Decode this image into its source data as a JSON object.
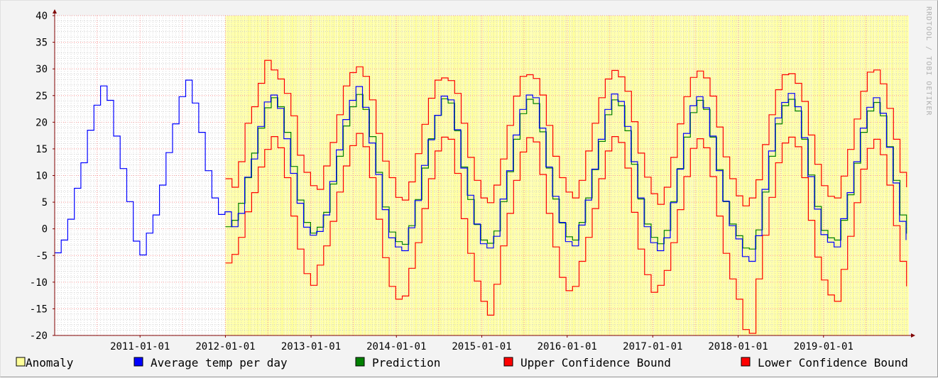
{
  "watermark": "RRDTOOL / TOBI OETIKER",
  "colors": {
    "background": "#f3f3f3",
    "plot_background": "#ffffff",
    "anomaly": "#ffff99",
    "average": "#0000ff",
    "prediction": "#008000",
    "upper": "#ff0000",
    "lower": "#ff0000",
    "grid_major": "#ff9999",
    "grid_minor": "#cccccc",
    "axis": "#800000"
  },
  "legend": [
    {
      "label": "Anomaly",
      "color": "#ffff99",
      "icon": "anomaly-swatch"
    },
    {
      "label": "Average temp per day",
      "color": "#0000ff",
      "icon": "average-swatch"
    },
    {
      "label": "Prediction",
      "color": "#008000",
      "icon": "prediction-swatch"
    },
    {
      "label": "Upper Confidence Bound",
      "color": "#ff0000",
      "icon": "upper-swatch"
    },
    {
      "label": "Lower Confidence Bound",
      "color": "#ff0000",
      "icon": "lower-swatch"
    }
  ],
  "chart_data": {
    "type": "line",
    "ylim": [
      -20,
      40
    ],
    "yticks": [
      -20,
      -15,
      -10,
      -5,
      0,
      5,
      10,
      15,
      20,
      25,
      30,
      35,
      40
    ],
    "xlim": [
      "2010-01-01",
      "2020-01-01"
    ],
    "xticks": [
      "2011-01-01",
      "2012-01-01",
      "2013-01-01",
      "2014-01-01",
      "2015-01-01",
      "2016-01-01",
      "2017-01-01",
      "2018-01-01",
      "2019-01-01"
    ],
    "grid": true,
    "legend_position": "bottom",
    "series": [
      {
        "name": "Average temp per day",
        "x": [
          "2010-01-01",
          "2010-01-29",
          "2010-02-26",
          "2010-03-26",
          "2010-04-23",
          "2010-05-21",
          "2010-06-18",
          "2010-07-16",
          "2010-08-13",
          "2010-09-10",
          "2010-10-08",
          "2010-11-05",
          "2010-12-03",
          "2010-12-31",
          "2011-01-28",
          "2011-02-25",
          "2011-03-25",
          "2011-04-22",
          "2011-05-20",
          "2011-06-17",
          "2011-07-15",
          "2011-08-12",
          "2011-09-09",
          "2011-10-07",
          "2011-11-04",
          "2011-12-02",
          "2011-12-30",
          "2012-01-27",
          "2012-02-24",
          "2012-03-23",
          "2012-04-20",
          "2012-05-18",
          "2012-06-15",
          "2012-07-13",
          "2012-08-10",
          "2012-09-07",
          "2012-10-05",
          "2012-11-02",
          "2012-11-30",
          "2012-12-28",
          "2013-01-25",
          "2013-02-22",
          "2013-03-22",
          "2013-04-19",
          "2013-05-17",
          "2013-06-14",
          "2013-07-12",
          "2013-08-09",
          "2013-09-06",
          "2013-10-04",
          "2013-11-01",
          "2013-11-29",
          "2013-12-27",
          "2014-01-24",
          "2014-02-21",
          "2014-03-21",
          "2014-04-18",
          "2014-05-16",
          "2014-06-13",
          "2014-07-11",
          "2014-08-08",
          "2014-09-05",
          "2014-10-03",
          "2014-10-31",
          "2014-11-28",
          "2014-12-26",
          "2015-01-23",
          "2015-02-20",
          "2015-03-20",
          "2015-04-17",
          "2015-05-15",
          "2015-06-12",
          "2015-07-10",
          "2015-08-07",
          "2015-09-04",
          "2015-10-02",
          "2015-10-30",
          "2015-11-27",
          "2015-12-25",
          "2016-01-22",
          "2016-02-19",
          "2016-03-18",
          "2016-04-15",
          "2016-05-13",
          "2016-06-10",
          "2016-07-08",
          "2016-08-05",
          "2016-09-02",
          "2016-09-30",
          "2016-10-28",
          "2016-11-25",
          "2016-12-23",
          "2017-01-20",
          "2017-02-17",
          "2017-03-17",
          "2017-04-14",
          "2017-05-12",
          "2017-06-09",
          "2017-07-07",
          "2017-08-04",
          "2017-09-01",
          "2017-09-29",
          "2017-10-27",
          "2017-11-24",
          "2017-12-22",
          "2018-01-19",
          "2018-02-16",
          "2018-03-16",
          "2018-04-13",
          "2018-05-11",
          "2018-06-08",
          "2018-07-06",
          "2018-08-03",
          "2018-08-31",
          "2018-09-28",
          "2018-10-26",
          "2018-11-23",
          "2018-12-21",
          "2019-01-18",
          "2019-02-15",
          "2019-03-15",
          "2019-04-12",
          "2019-05-10",
          "2019-06-07",
          "2019-07-05",
          "2019-08-02",
          "2019-08-30",
          "2019-09-27",
          "2019-10-25",
          "2019-11-22",
          "2019-12-20"
        ],
        "values": [
          -4.5,
          -2.1,
          1.8,
          7.6,
          12.4,
          18.5,
          23.2,
          26.8,
          24.1,
          17.4,
          11.3,
          5.1,
          -2.3,
          -4.9,
          -0.8,
          2.6,
          8.2,
          14.3,
          19.7,
          24.8,
          27.9,
          23.6,
          18.1,
          10.9,
          5.8,
          2.7,
          3.2,
          0.4,
          2.9,
          9.7,
          13.1,
          19.2,
          23.8,
          25.1,
          22.6,
          16.9,
          10.4,
          4.8,
          0.3,
          -1.2,
          -0.5,
          2.6,
          8.9,
          14.8,
          20.5,
          24.1,
          26.7,
          22.8,
          16.1,
          10.2,
          3.6,
          -1.7,
          -3.4,
          -4.1,
          0.2,
          5.3,
          11.9,
          16.7,
          21.3,
          24.9,
          24.2,
          18.6,
          11.4,
          6.3,
          0.9,
          -2.8,
          -3.6,
          -1.4,
          5.6,
          10.9,
          17.6,
          22.4,
          25.1,
          24.6,
          18.9,
          11.6,
          6.1,
          1.2,
          -2.4,
          -3.2,
          0.7,
          5.4,
          11.2,
          16.8,
          22.4,
          25.3,
          23.9,
          19.2,
          12.6,
          5.8,
          0.4,
          -2.6,
          -4.1,
          -1.7,
          4.9,
          11.2,
          17.9,
          23.1,
          24.8,
          22.7,
          17.4,
          10.9,
          5.2,
          0.6,
          -1.9,
          -5.2,
          -6.1,
          -1.3,
          7.4,
          14.6,
          20.8,
          23.7,
          25.4,
          22.9,
          17.1,
          9.8,
          3.7,
          -1.1,
          -2.5,
          -3.4,
          1.9,
          6.8,
          12.6,
          18.9,
          22.8,
          24.6,
          21.7,
          15.3,
          8.6,
          1.4,
          -2.1
        ]
      },
      {
        "name": "Prediction",
        "x": [
          "2012-01-01",
          "2012-01-29",
          "2012-02-26",
          "2012-03-25",
          "2012-04-22",
          "2012-05-20",
          "2012-06-17",
          "2012-07-15",
          "2012-08-12",
          "2012-09-09",
          "2012-10-07",
          "2012-11-04",
          "2012-12-02",
          "2012-12-30",
          "2013-01-27",
          "2013-02-24",
          "2013-03-24",
          "2013-04-21",
          "2013-05-19",
          "2013-06-16",
          "2013-07-14",
          "2013-08-11",
          "2013-09-08",
          "2013-10-06",
          "2013-11-03",
          "2013-12-01",
          "2013-12-29",
          "2014-01-26",
          "2014-02-23",
          "2014-03-23",
          "2014-04-20",
          "2014-05-18",
          "2014-06-15",
          "2014-07-13",
          "2014-08-10",
          "2014-09-07",
          "2014-10-05",
          "2014-11-02",
          "2014-11-30",
          "2014-12-28",
          "2015-01-25",
          "2015-02-22",
          "2015-03-22",
          "2015-04-19",
          "2015-05-17",
          "2015-06-14",
          "2015-07-12",
          "2015-08-09",
          "2015-09-06",
          "2015-10-04",
          "2015-11-01",
          "2015-11-29",
          "2015-12-27",
          "2016-01-24",
          "2016-02-21",
          "2016-03-20",
          "2016-04-17",
          "2016-05-15",
          "2016-06-12",
          "2016-07-10",
          "2016-08-07",
          "2016-09-04",
          "2016-10-02",
          "2016-10-30",
          "2016-11-27",
          "2016-12-25",
          "2017-01-22",
          "2017-02-19",
          "2017-03-19",
          "2017-04-16",
          "2017-05-14",
          "2017-06-11",
          "2017-07-09",
          "2017-08-06",
          "2017-09-03",
          "2017-10-01",
          "2017-10-29",
          "2017-11-26",
          "2017-12-24",
          "2018-01-21",
          "2018-02-18",
          "2018-03-18",
          "2018-04-15",
          "2018-05-13",
          "2018-06-10",
          "2018-07-08",
          "2018-08-05",
          "2018-09-02",
          "2018-09-30",
          "2018-10-28",
          "2018-11-25",
          "2018-12-23",
          "2019-01-20",
          "2019-02-17",
          "2019-03-17",
          "2019-04-14",
          "2019-05-12",
          "2019-06-09",
          "2019-07-07",
          "2019-08-04",
          "2019-09-01",
          "2019-09-29",
          "2019-10-27",
          "2019-11-24",
          "2019-12-22"
        ],
        "values": [
          0.4,
          1.6,
          4.8,
          9.6,
          14.2,
          18.9,
          22.7,
          24.6,
          22.9,
          18.1,
          11.7,
          5.4,
          1.2,
          -0.8,
          0.3,
          3.1,
          8.4,
          13.6,
          19.3,
          22.9,
          25.2,
          22.4,
          17.3,
          10.6,
          4.1,
          -0.6,
          -2.4,
          -2.9,
          0.6,
          5.5,
          11.4,
          16.9,
          21.3,
          24.4,
          23.6,
          18.4,
          11.6,
          5.5,
          0.8,
          -2.1,
          -2.7,
          -0.4,
          5.1,
          10.7,
          16.8,
          21.6,
          24.3,
          23.5,
          18.2,
          11.4,
          5.6,
          1.1,
          -1.5,
          -2.1,
          1.2,
          5.8,
          11.1,
          16.4,
          21.4,
          24.2,
          23.1,
          18.4,
          12.1,
          5.6,
          0.9,
          -1.6,
          -2.8,
          -0.3,
          5.1,
          11.3,
          17.2,
          21.8,
          24.1,
          22.4,
          17.2,
          11.1,
          5.1,
          0.9,
          -1.3,
          -3.6,
          -3.8,
          -0.2,
          6.9,
          13.6,
          19.7,
          23.1,
          24.3,
          22.1,
          16.8,
          10.1,
          4.2,
          -0.3,
          -1.7,
          -2.1,
          1.6,
          6.4,
          12.3,
          18.1,
          22.1,
          23.7,
          21.2,
          15.4,
          9.1,
          2.6,
          -0.9
        ]
      },
      {
        "name": "Upper Confidence Bound",
        "x": [
          "2012-01-01",
          "2012-01-29",
          "2012-02-26",
          "2012-03-25",
          "2012-04-22",
          "2012-05-20",
          "2012-06-17",
          "2012-07-15",
          "2012-08-12",
          "2012-09-09",
          "2012-10-07",
          "2012-11-04",
          "2012-12-02",
          "2012-12-30",
          "2013-01-27",
          "2013-02-24",
          "2013-03-24",
          "2013-04-21",
          "2013-05-19",
          "2013-06-16",
          "2013-07-14",
          "2013-08-11",
          "2013-09-08",
          "2013-10-06",
          "2013-11-03",
          "2013-12-01",
          "2013-12-29",
          "2014-01-26",
          "2014-02-23",
          "2014-03-23",
          "2014-04-20",
          "2014-05-18",
          "2014-06-15",
          "2014-07-13",
          "2014-08-10",
          "2014-09-07",
          "2014-10-05",
          "2014-11-02",
          "2014-11-30",
          "2014-12-28",
          "2015-01-25",
          "2015-02-22",
          "2015-03-22",
          "2015-04-19",
          "2015-05-17",
          "2015-06-14",
          "2015-07-12",
          "2015-08-09",
          "2015-09-06",
          "2015-10-04",
          "2015-11-01",
          "2015-11-29",
          "2015-12-27",
          "2016-01-24",
          "2016-02-21",
          "2016-03-20",
          "2016-04-17",
          "2016-05-15",
          "2016-06-12",
          "2016-07-10",
          "2016-08-07",
          "2016-09-04",
          "2016-10-02",
          "2016-10-30",
          "2016-11-27",
          "2016-12-25",
          "2017-01-22",
          "2017-02-19",
          "2017-03-19",
          "2017-04-16",
          "2017-05-14",
          "2017-06-11",
          "2017-07-09",
          "2017-08-06",
          "2017-09-03",
          "2017-10-01",
          "2017-10-29",
          "2017-11-26",
          "2017-12-24",
          "2018-01-21",
          "2018-02-18",
          "2018-03-18",
          "2018-04-15",
          "2018-05-13",
          "2018-06-10",
          "2018-07-08",
          "2018-08-05",
          "2018-09-02",
          "2018-09-30",
          "2018-10-28",
          "2018-11-25",
          "2018-12-23",
          "2019-01-20",
          "2019-02-17",
          "2019-03-17",
          "2019-04-14",
          "2019-05-12",
          "2019-06-09",
          "2019-07-07",
          "2019-08-04",
          "2019-09-01",
          "2019-09-29",
          "2019-10-27",
          "2019-11-24",
          "2019-12-22"
        ],
        "values": [
          9.4,
          7.8,
          12.6,
          19.8,
          22.9,
          27.3,
          31.6,
          29.8,
          28.1,
          25.4,
          21.2,
          13.8,
          10.6,
          8.1,
          7.4,
          11.8,
          16.2,
          21.4,
          26.8,
          29.3,
          30.4,
          28.6,
          24.2,
          17.9,
          12.7,
          9.6,
          5.9,
          5.4,
          8.8,
          14.1,
          19.6,
          24.5,
          27.9,
          28.3,
          27.8,
          25.4,
          19.8,
          13.4,
          9.1,
          5.8,
          4.9,
          8.2,
          13.1,
          19.4,
          24.9,
          28.6,
          28.9,
          28.2,
          25.1,
          19.4,
          13.6,
          9.6,
          6.9,
          5.8,
          9.1,
          14.6,
          19.8,
          24.6,
          28.1,
          29.7,
          28.5,
          25.8,
          20.1,
          14.2,
          9.7,
          6.6,
          4.6,
          7.8,
          13.4,
          19.7,
          24.8,
          28.4,
          29.6,
          28.3,
          24.9,
          19.1,
          13.5,
          9.4,
          6.2,
          4.3,
          5.8,
          9.2,
          15.8,
          21.4,
          26.1,
          28.9,
          29.1,
          27.3,
          23.9,
          17.6,
          12.1,
          8.1,
          6.1,
          5.8,
          9.9,
          14.9,
          20.6,
          25.8,
          29.4,
          29.8,
          27.2,
          22.6,
          16.8,
          10.6,
          7.8
        ]
      },
      {
        "name": "Lower Confidence Bound",
        "x": [
          "2012-01-01",
          "2012-01-29",
          "2012-02-26",
          "2012-03-25",
          "2012-04-22",
          "2012-05-20",
          "2012-06-17",
          "2012-07-15",
          "2012-08-12",
          "2012-09-09",
          "2012-10-07",
          "2012-11-04",
          "2012-12-02",
          "2012-12-30",
          "2013-01-27",
          "2013-02-24",
          "2013-03-24",
          "2013-04-21",
          "2013-05-19",
          "2013-06-16",
          "2013-07-14",
          "2013-08-11",
          "2013-09-08",
          "2013-10-06",
          "2013-11-03",
          "2013-12-01",
          "2013-12-29",
          "2014-01-26",
          "2014-02-23",
          "2014-03-23",
          "2014-04-20",
          "2014-05-18",
          "2014-06-15",
          "2014-07-13",
          "2014-08-10",
          "2014-09-07",
          "2014-10-05",
          "2014-11-02",
          "2014-11-30",
          "2014-12-28",
          "2015-01-25",
          "2015-02-22",
          "2015-03-22",
          "2015-04-19",
          "2015-05-17",
          "2015-06-14",
          "2015-07-12",
          "2015-08-09",
          "2015-09-06",
          "2015-10-04",
          "2015-11-01",
          "2015-11-29",
          "2015-12-27",
          "2016-01-24",
          "2016-02-21",
          "2016-03-20",
          "2016-04-17",
          "2016-05-15",
          "2016-06-12",
          "2016-07-10",
          "2016-08-07",
          "2016-09-04",
          "2016-10-02",
          "2016-10-30",
          "2016-11-27",
          "2016-12-25",
          "2017-01-22",
          "2017-02-19",
          "2017-03-19",
          "2017-04-16",
          "2017-05-14",
          "2017-06-11",
          "2017-07-09",
          "2017-08-06",
          "2017-09-03",
          "2017-10-01",
          "2017-10-29",
          "2017-11-26",
          "2017-12-24",
          "2018-01-21",
          "2018-02-18",
          "2018-03-18",
          "2018-04-15",
          "2018-05-13",
          "2018-06-10",
          "2018-07-08",
          "2018-08-05",
          "2018-09-02",
          "2018-09-30",
          "2018-10-28",
          "2018-11-25",
          "2018-12-23",
          "2019-01-20",
          "2019-02-17",
          "2019-03-17",
          "2019-04-14",
          "2019-05-12",
          "2019-06-09",
          "2019-07-07",
          "2019-08-04",
          "2019-09-01",
          "2019-09-29",
          "2019-10-27",
          "2019-11-24",
          "2019-12-22"
        ],
        "values": [
          -6.4,
          -4.8,
          -1.6,
          3.2,
          6.8,
          11.6,
          14.9,
          17.3,
          15.2,
          9.6,
          2.4,
          -3.8,
          -8.4,
          -10.6,
          -6.8,
          -3.2,
          1.4,
          6.9,
          11.8,
          15.6,
          17.9,
          15.4,
          9.6,
          1.8,
          -5.4,
          -10.8,
          -13.2,
          -12.6,
          -7.4,
          -2.6,
          3.8,
          9.4,
          14.6,
          17.2,
          16.8,
          10.4,
          1.9,
          -4.6,
          -9.8,
          -13.6,
          -16.2,
          -10.4,
          -3.2,
          2.9,
          9.1,
          14.4,
          17.1,
          16.3,
          10.2,
          2.9,
          -3.4,
          -9.1,
          -11.6,
          -10.8,
          -6.1,
          -1.6,
          3.8,
          9.4,
          14.6,
          17.3,
          16.2,
          11.4,
          3.1,
          -3.8,
          -8.6,
          -11.9,
          -10.6,
          -7.8,
          -2.6,
          3.6,
          9.8,
          15.1,
          16.9,
          15.2,
          9.8,
          2.4,
          -4.6,
          -9.4,
          -13.2,
          -18.9,
          -19.6,
          -9.4,
          -1.2,
          5.9,
          12.4,
          16.1,
          17.2,
          15.4,
          9.6,
          1.6,
          -5.3,
          -9.6,
          -12.4,
          -13.6,
          -7.6,
          -1.4,
          4.9,
          11.2,
          15.1,
          16.8,
          13.9,
          8.2,
          0.6,
          -6.1,
          -10.8
        ]
      }
    ]
  }
}
